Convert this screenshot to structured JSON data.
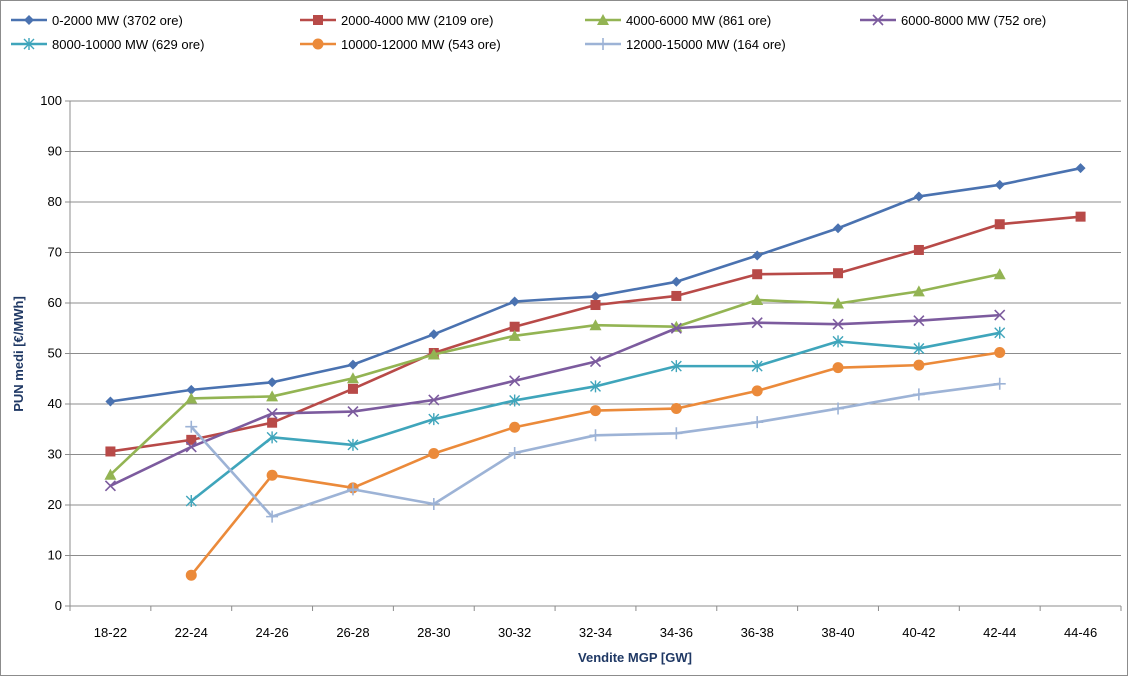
{
  "chart_data": {
    "type": "line",
    "title": "",
    "xlabel": "Vendite MGP [GW]",
    "ylabel": "PUN medi [€/MWh]",
    "ylim": [
      0,
      100
    ],
    "yticks": [
      0,
      10,
      20,
      30,
      40,
      50,
      60,
      70,
      80,
      90,
      100
    ],
    "grid": "horizontal",
    "legend_position": "top",
    "categories": [
      "18-22",
      "22-24",
      "24-26",
      "26-28",
      "28-30",
      "30-32",
      "32-34",
      "34-36",
      "36-38",
      "38-40",
      "40-42",
      "42-44",
      "44-46"
    ],
    "series": [
      {
        "name": "0-2000 MW (3702 ore)",
        "color": "#4a72b0",
        "marker": "diamond",
        "values": [
          40.5,
          42.8,
          44.3,
          47.8,
          53.8,
          60.3,
          61.3,
          64.2,
          69.4,
          74.8,
          81.1,
          83.4,
          86.7
        ]
      },
      {
        "name": "2000-4000 MW (2109 ore)",
        "color": "#b84a48",
        "marker": "square",
        "values": [
          30.6,
          32.9,
          36.3,
          43.0,
          50.1,
          55.3,
          59.6,
          61.4,
          65.7,
          65.9,
          70.5,
          75.6,
          77.1
        ]
      },
      {
        "name": "4000-6000 MW (861 ore)",
        "color": "#93b453",
        "marker": "triangle",
        "values": [
          26.0,
          41.1,
          41.5,
          45.1,
          49.8,
          53.5,
          55.6,
          55.3,
          60.6,
          59.9,
          62.3,
          65.7,
          null
        ]
      },
      {
        "name": "6000-8000 MW (752 ore)",
        "color": "#7c5b9e",
        "marker": "x",
        "values": [
          23.8,
          31.5,
          38.1,
          38.5,
          40.8,
          44.6,
          48.4,
          55.0,
          56.1,
          55.8,
          56.5,
          57.6,
          null
        ]
      },
      {
        "name": "8000-10000 MW (629 ore)",
        "color": "#3fa5bb",
        "marker": "asterisk",
        "values": [
          null,
          20.8,
          33.4,
          31.9,
          37.0,
          40.7,
          43.5,
          47.5,
          47.5,
          52.4,
          51.0,
          54.1,
          null
        ]
      },
      {
        "name": "10000-12000 MW (543 ore)",
        "color": "#eb8a3a",
        "marker": "circle",
        "values": [
          null,
          6.1,
          25.9,
          23.4,
          30.2,
          35.4,
          38.7,
          39.1,
          42.6,
          47.2,
          47.7,
          50.2,
          null
        ]
      },
      {
        "name": "12000-15000 MW (164 ore)",
        "color": "#9db3d6",
        "marker": "plus",
        "values": [
          null,
          35.5,
          17.7,
          23.1,
          20.2,
          30.3,
          33.8,
          34.2,
          36.4,
          39.1,
          41.9,
          44.0,
          null
        ]
      }
    ]
  }
}
